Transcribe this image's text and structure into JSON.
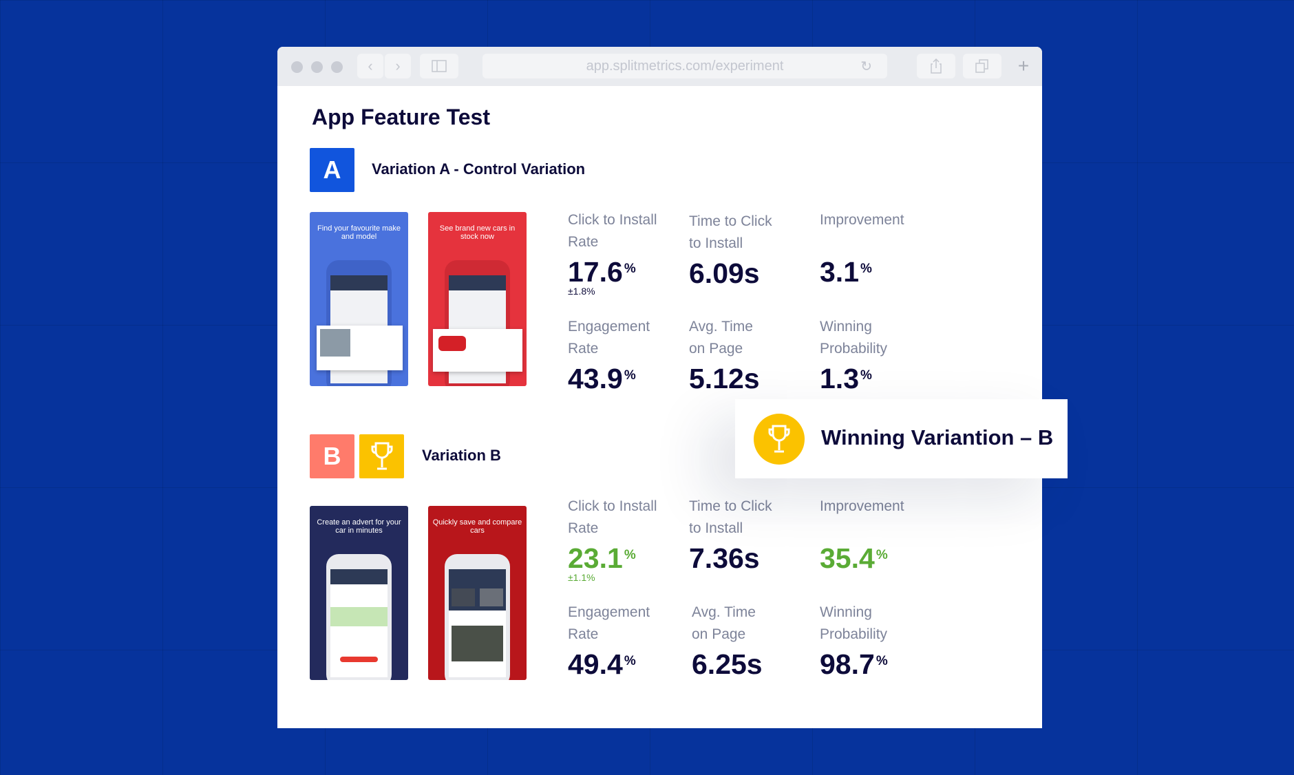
{
  "browser": {
    "url": "app.splitmetrics.com/experiment",
    "back_icon": "chevron-left-icon",
    "forward_icon": "chevron-right-icon",
    "sidebar_icon": "sidebar-icon",
    "reload_icon": "reload-icon",
    "share_icon": "share-icon",
    "tabs_icon": "tabs-icon",
    "new_tab_icon": "plus-icon"
  },
  "page": {
    "title": "App Feature Test"
  },
  "colors": {
    "background": "#06339c",
    "variation_a": "#1155dd",
    "variation_b": "#ff7b6b",
    "trophy": "#fbc200",
    "positive": "#5aab35",
    "text_dark": "#0d0b3a",
    "label_gray": "#7d8399"
  },
  "variation_a": {
    "badge": "A",
    "label": "Variation A - Control Variation",
    "screenshots": [
      {
        "caption": "Find your favourite make and model",
        "color": "#4a72dd"
      },
      {
        "caption": "See brand new cars in stock now",
        "color": "#e5333d"
      }
    ],
    "metrics": [
      {
        "label": "Click to Install Rate",
        "value": "17.6",
        "unit": "%",
        "error": "±1.8%"
      },
      {
        "label": "Time to Click to Install",
        "value": "6.09s"
      },
      {
        "label": "Improvement",
        "value": "3.1",
        "unit": "%"
      },
      {
        "label": "Engagement Rate",
        "value": "43.9",
        "unit": "%"
      },
      {
        "label": "Avg. Time on Page",
        "value": "5.12s"
      },
      {
        "label": "Winning Probability",
        "value": "1.3",
        "unit": "%"
      }
    ]
  },
  "variation_b": {
    "badge": "B",
    "trophy_icon": "trophy-icon",
    "label": "Variation B",
    "screenshots": [
      {
        "caption": "Create an advert for your car in minutes",
        "color": "#232a5c"
      },
      {
        "caption": "Quickly save and compare cars",
        "color": "#b8161b"
      }
    ],
    "metrics": [
      {
        "label": "Click to Install Rate",
        "value": "23.1",
        "unit": "%",
        "error": "±1.1%"
      },
      {
        "label": "Time to Click to Install",
        "value": "7.36s"
      },
      {
        "label": "Improvement",
        "value": "35.4",
        "unit": "%"
      },
      {
        "label": "Engagement Rate",
        "value": "49.4",
        "unit": "%"
      },
      {
        "label": "Avg. Time on Page",
        "value": "6.25s"
      },
      {
        "label": "Winning Probability",
        "value": "98.7",
        "unit": "%"
      }
    ]
  },
  "winner": {
    "text": "Winning Variantion – B",
    "icon": "trophy-icon"
  }
}
